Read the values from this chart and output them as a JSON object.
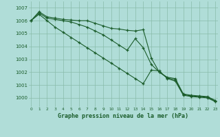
{
  "x": [
    0,
    1,
    2,
    3,
    4,
    5,
    6,
    7,
    8,
    9,
    10,
    11,
    12,
    13,
    14,
    15,
    16,
    17,
    18,
    19,
    20,
    21,
    22,
    23
  ],
  "line_top": [
    1006.0,
    1006.7,
    1006.3,
    1006.2,
    1006.1,
    1006.05,
    1006.0,
    1006.0,
    1005.8,
    1005.6,
    1005.4,
    1005.35,
    1005.25,
    1005.2,
    1005.3,
    1003.1,
    1002.0,
    1001.6,
    1001.5,
    1000.3,
    1000.2,
    1000.15,
    1000.1,
    999.8
  ],
  "line_mid": [
    1006.0,
    1006.6,
    1006.2,
    1006.1,
    1006.0,
    1005.9,
    1005.7,
    1005.5,
    1005.2,
    1004.9,
    1004.5,
    1004.1,
    1003.7,
    1004.6,
    1003.9,
    1002.6,
    1002.0,
    1001.55,
    1001.4,
    1000.25,
    1000.15,
    1000.1,
    1000.05,
    999.75
  ],
  "line_bot": [
    1006.0,
    1006.5,
    1006.0,
    1005.5,
    1005.1,
    1004.7,
    1004.3,
    1003.9,
    1003.5,
    1003.1,
    1002.7,
    1002.3,
    1001.9,
    1001.5,
    1001.1,
    1002.15,
    1002.1,
    1001.5,
    1001.3,
    1000.2,
    1000.1,
    1000.05,
    1000.0,
    999.7
  ],
  "bg_color": "#b0ddd8",
  "grid_color": "#88bbaa",
  "line_color": "#1a5c2a",
  "marker": "+",
  "ylim_min": 999.3,
  "ylim_max": 1007.5,
  "xlim_min": -0.3,
  "xlim_max": 23.3,
  "xlabel": "Graphe pression niveau de la mer (hPa)",
  "tick_color": "#1a5c2a",
  "yticks": [
    1000,
    1001,
    1002,
    1003,
    1004,
    1005,
    1006,
    1007
  ]
}
